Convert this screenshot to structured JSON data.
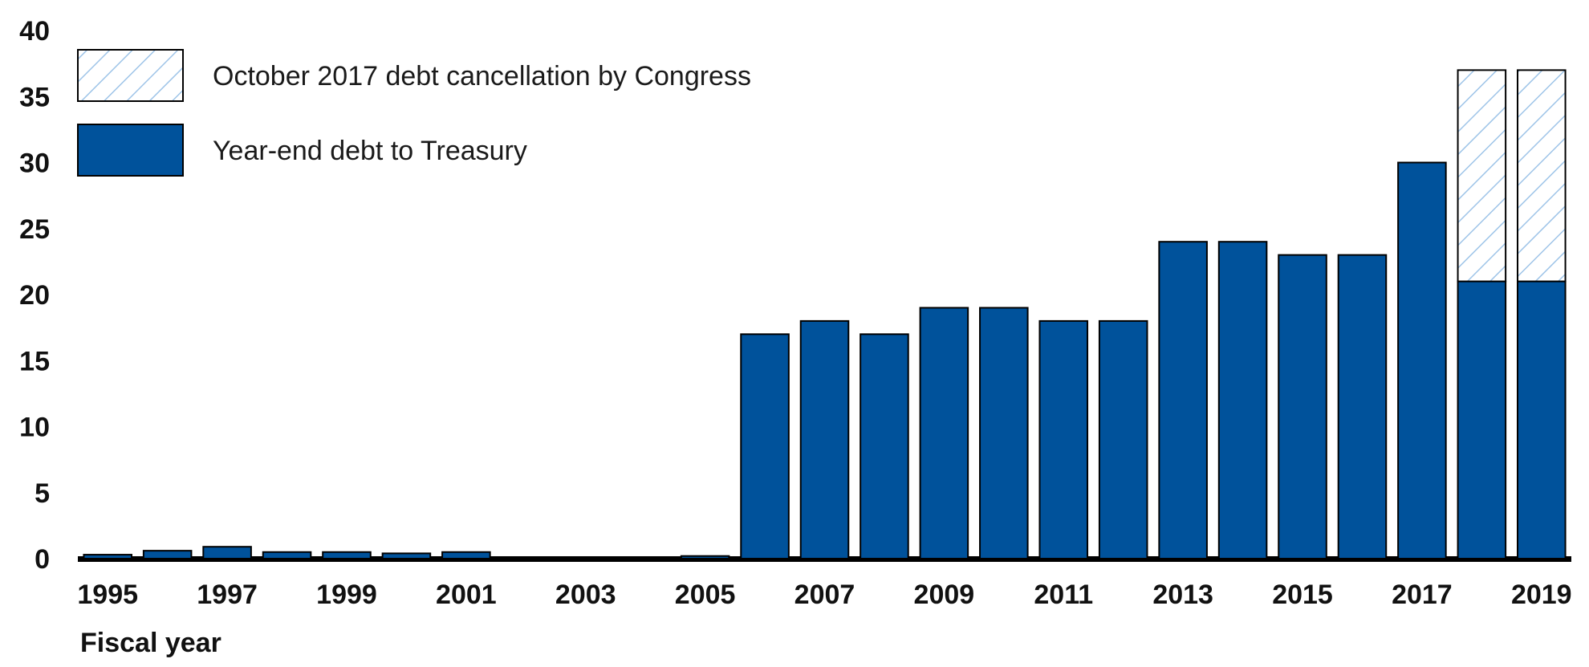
{
  "chart_data": {
    "type": "bar",
    "stacked": true,
    "x": [
      1995,
      1996,
      1997,
      1998,
      1999,
      2000,
      2001,
      2002,
      2003,
      2004,
      2005,
      2006,
      2007,
      2008,
      2009,
      2010,
      2011,
      2012,
      2013,
      2014,
      2015,
      2016,
      2017,
      2018,
      2019
    ],
    "x_tick_labels": [
      "1995",
      "1997",
      "1999",
      "2001",
      "2003",
      "2005",
      "2007",
      "2009",
      "2011",
      "2013",
      "2015",
      "2017",
      "2019"
    ],
    "y_ticks": [
      "0",
      "5",
      "10",
      "15",
      "20",
      "25",
      "30",
      "35",
      "40"
    ],
    "ylim": [
      0,
      40
    ],
    "xlabel": "Fiscal year",
    "series": [
      {
        "name": "Year-end debt to Treasury",
        "color": "#00529b",
        "pattern": "solid",
        "values": [
          0.3,
          0.6,
          0.9,
          0.5,
          0.5,
          0.4,
          0.5,
          0.1,
          0.1,
          0.1,
          0.2,
          17,
          18,
          17,
          19,
          19,
          18,
          18,
          24,
          24,
          23,
          23,
          30,
          21,
          21
        ]
      },
      {
        "name": "October 2017 debt cancellation by Congress",
        "color": "#9ec4e8",
        "pattern": "hatched",
        "values": [
          0,
          0,
          0,
          0,
          0,
          0,
          0,
          0,
          0,
          0,
          0,
          0,
          0,
          0,
          0,
          0,
          0,
          0,
          0,
          0,
          0,
          0,
          0,
          16,
          16
        ]
      }
    ],
    "legend": {
      "position": "top-left",
      "order": [
        "October 2017 debt cancellation by Congress",
        "Year-end debt to Treasury"
      ]
    },
    "grid": false
  }
}
